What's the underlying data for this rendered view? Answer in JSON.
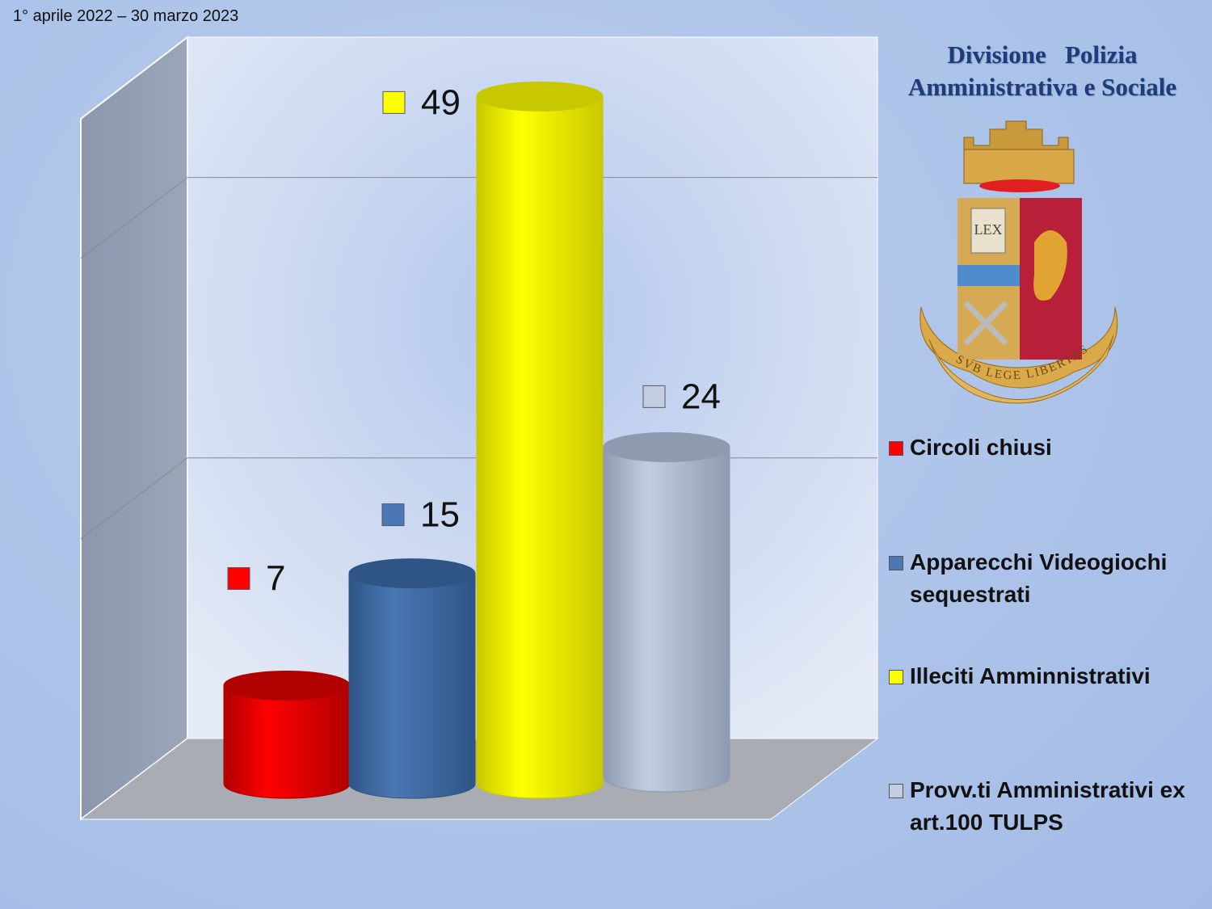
{
  "period": "1° aprile 2022 – 30 marzo 2023",
  "organization": {
    "line1": "Divisione   Polizia",
    "line2": "Amministrativa e Sociale",
    "emblem_text": "LEX",
    "motto": "SVB LEGE LIBERTAS"
  },
  "chart_data": {
    "type": "bar",
    "style": "3d-cylinder",
    "categories": [
      "Circoli chiusi",
      "Apparecchi Videogiochi sequestrati",
      "Illeciti Amminnistrativi",
      "Provv.ti Amministrativi ex art.100 TULPS"
    ],
    "values": [
      7,
      15,
      49,
      24
    ],
    "data_labels": [
      "7",
      "15",
      "49",
      "24"
    ],
    "colors": [
      "#ff0000",
      "#4a78b4",
      "#ffff00",
      "#c3cde0"
    ],
    "ylim": [
      0,
      50
    ],
    "gridlines": [
      20,
      40
    ],
    "grid": true,
    "legend_position": "right",
    "title": "",
    "xlabel": "",
    "ylabel": ""
  }
}
